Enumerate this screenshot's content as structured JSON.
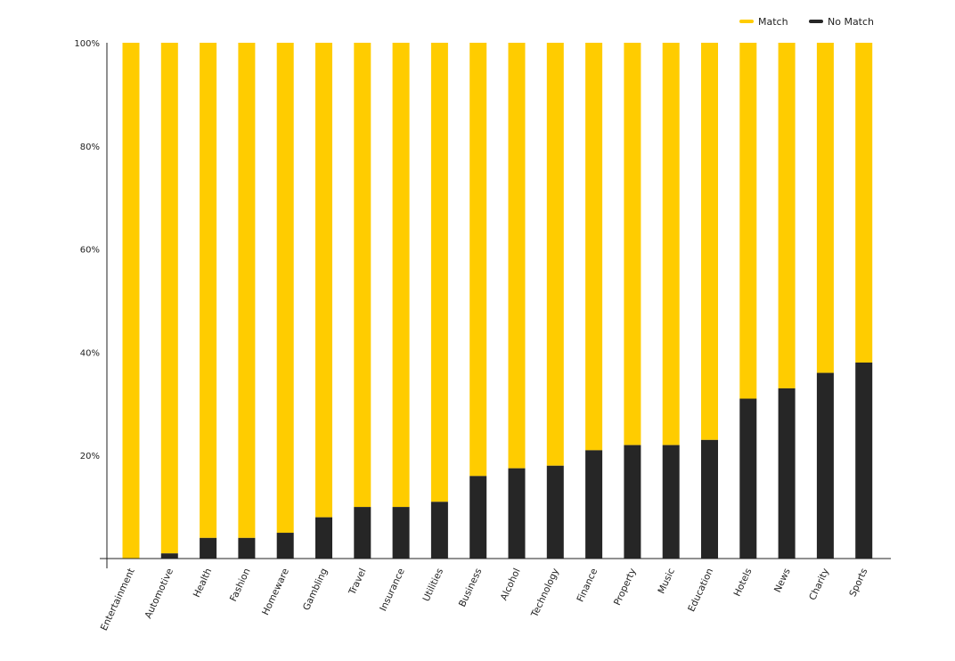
{
  "chart_data": {
    "type": "bar",
    "stacked": true,
    "categories": [
      "Entertainment",
      "Automotive",
      "Health",
      "Fashion",
      "Homeware",
      "Gambling",
      "Travel",
      "Insurance",
      "Utilities",
      "Business",
      "Alcohol",
      "Technology",
      "Finance",
      "Property",
      "Music",
      "Education",
      "Hotels",
      "News",
      "Charity",
      "Sports"
    ],
    "series": [
      {
        "name": "No Match",
        "color": "#262626",
        "values": [
          0,
          1,
          4,
          4,
          5,
          8,
          10,
          10,
          11,
          16,
          17.5,
          18,
          21,
          22,
          22,
          23,
          31,
          33,
          36,
          38
        ]
      },
      {
        "name": "Match",
        "color": "#FFCC00",
        "values": [
          100,
          99,
          96,
          96,
          95,
          92,
          90,
          90,
          89,
          84,
          82.5,
          82,
          79,
          78,
          78,
          77,
          69,
          67,
          64,
          62
        ]
      }
    ],
    "yticks": [
      "20%",
      "40%",
      "60%",
      "80%",
      "100%"
    ],
    "ytick_values": [
      20,
      40,
      60,
      80,
      100
    ],
    "ylim": [
      0,
      100
    ],
    "legend_position": "top-right",
    "grid": false
  }
}
